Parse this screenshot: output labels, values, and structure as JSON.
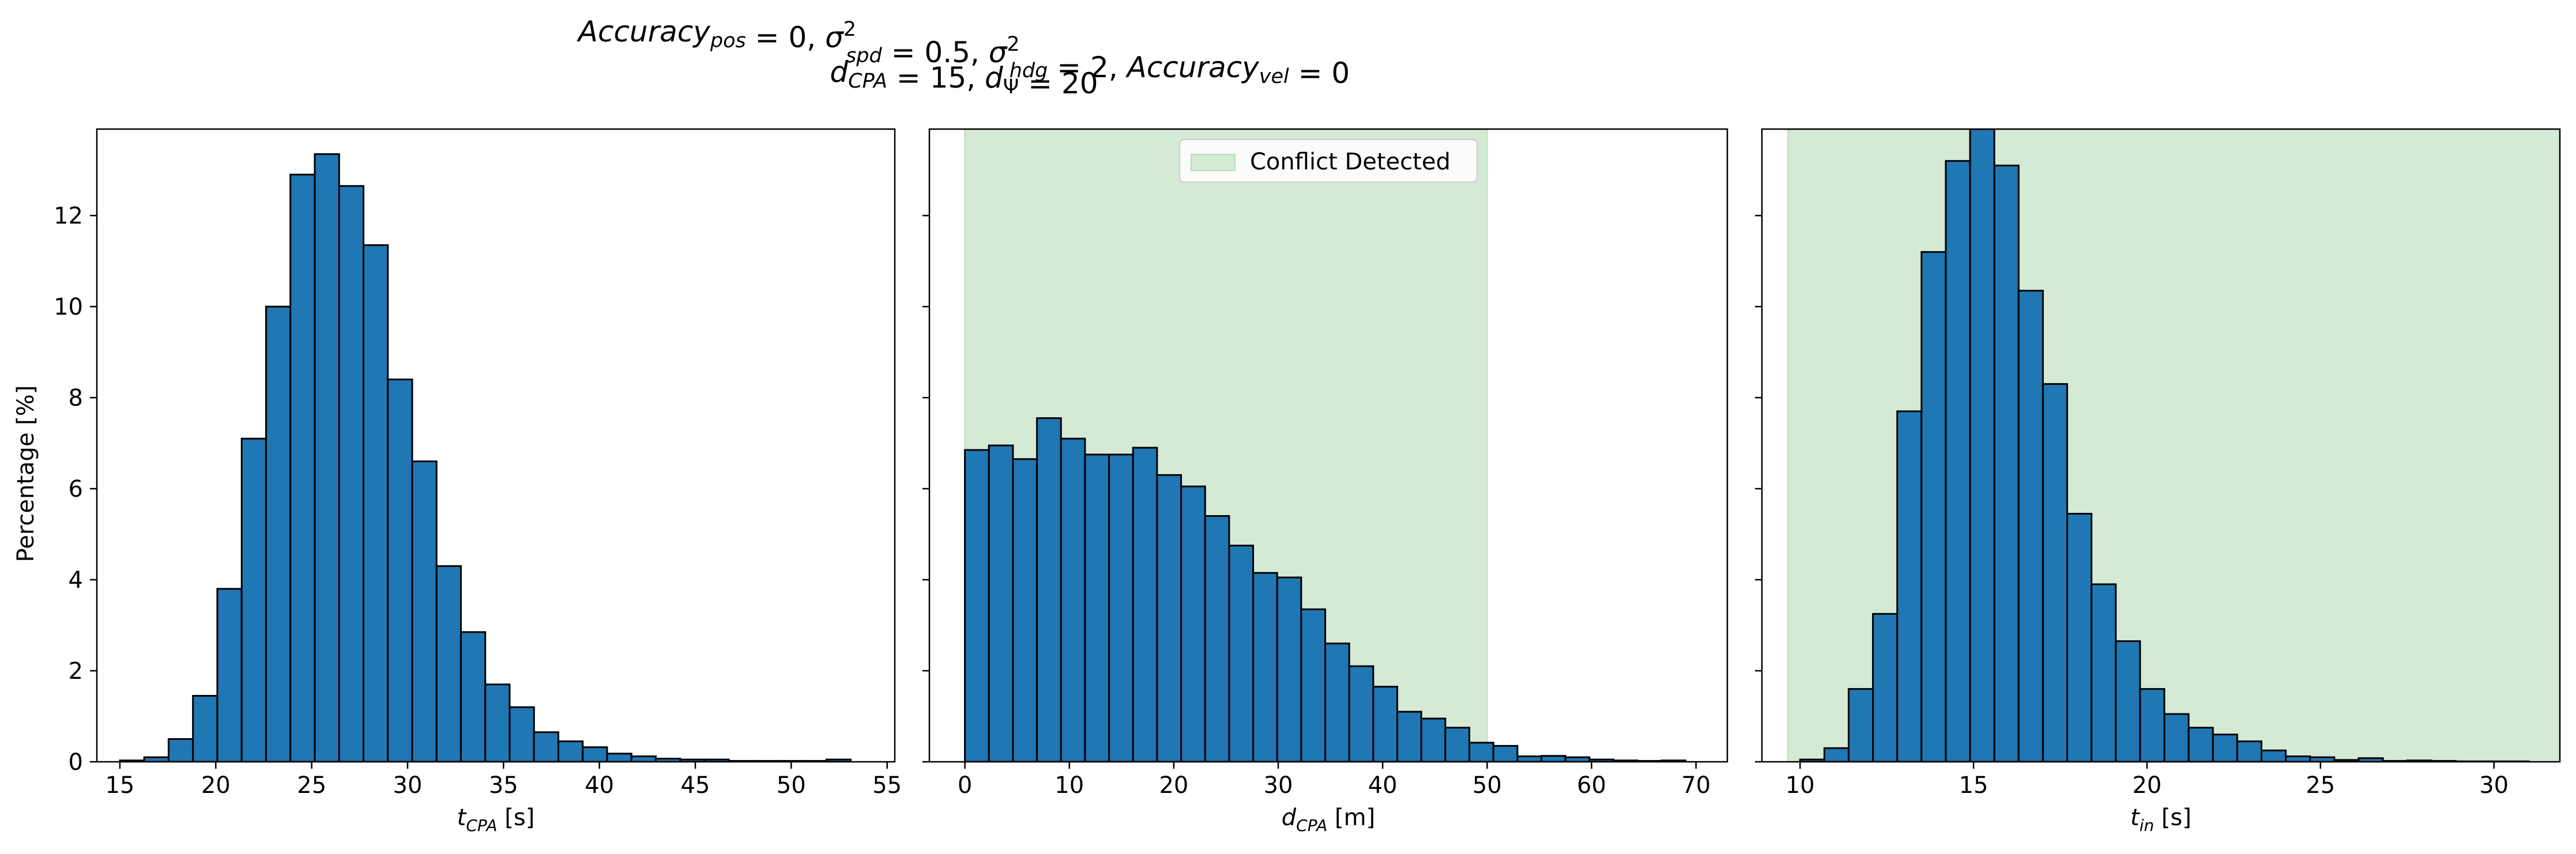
{
  "chart_data": {
    "title_lines": [
      "Accuracy_pos = 0, σ²_spd = 0.5, σ²_hdg = 2, Accuracy_vel = 0",
      "d_CPA = 15, d_Ψ = 20"
    ],
    "shared_ylabel": "Percentage [%]",
    "colors": {
      "bar_fill": "#1f77b4",
      "bar_edge": "#000000",
      "conflict_span": "#d5ead5",
      "conflict_span_edge": "#b9dbb9"
    },
    "subplots": [
      {
        "type": "histogram",
        "xlabel": "t_CPA [s]",
        "xlim": [
          13.8,
          55.4
        ],
        "ylim": [
          0,
          13.9
        ],
        "xticks": [
          15,
          20,
          25,
          30,
          35,
          40,
          45,
          50,
          55
        ],
        "yticks": [
          0,
          2,
          4,
          6,
          8,
          10,
          12
        ],
        "bin_width": 1.27,
        "bin_starts": [
          15.0,
          16.27,
          17.54,
          18.81,
          20.08,
          21.35,
          22.62,
          23.89,
          25.16,
          26.43,
          27.7,
          28.97,
          30.24,
          31.51,
          32.78,
          34.05,
          35.32,
          36.59,
          37.86,
          39.13,
          40.4,
          41.67,
          42.94,
          44.21,
          45.48,
          46.75,
          48.02,
          49.29,
          50.56,
          51.83
        ],
        "values": [
          0.03,
          0.1,
          0.5,
          1.45,
          3.8,
          7.1,
          10.0,
          12.9,
          13.35,
          12.65,
          11.35,
          8.4,
          6.6,
          4.3,
          2.85,
          1.7,
          1.2,
          0.65,
          0.45,
          0.32,
          0.18,
          0.12,
          0.07,
          0.05,
          0.05,
          0.02,
          0.02,
          0.02,
          0.02,
          0.05
        ]
      },
      {
        "type": "histogram",
        "xlabel": "d_CPA [m]",
        "xlim": [
          -3.4,
          73.0
        ],
        "ylim": [
          0,
          13.9
        ],
        "xticks": [
          0,
          10,
          20,
          30,
          40,
          50,
          60,
          70
        ],
        "yticks": [
          0,
          2,
          4,
          6,
          8,
          10,
          12
        ],
        "bin_width": 2.3,
        "bin_starts": [
          0.0,
          2.3,
          4.6,
          6.9,
          9.2,
          11.5,
          13.8,
          16.1,
          18.4,
          20.7,
          23.0,
          25.3,
          27.6,
          29.9,
          32.2,
          34.5,
          36.8,
          39.1,
          41.4,
          43.7,
          46.0,
          48.3,
          50.6,
          52.9,
          55.2,
          57.5,
          59.8,
          62.1,
          64.4,
          66.7
        ],
        "values": [
          6.85,
          6.95,
          6.65,
          7.55,
          7.1,
          6.75,
          6.75,
          6.9,
          6.3,
          6.05,
          5.4,
          4.75,
          4.15,
          4.05,
          3.35,
          2.6,
          2.1,
          1.65,
          1.1,
          0.95,
          0.75,
          0.42,
          0.35,
          0.12,
          0.13,
          0.1,
          0.05,
          0.03,
          0.02,
          0.03
        ],
        "span": {
          "x0": 0,
          "x1": 50,
          "label": "Conflict Detected"
        },
        "legend_position": "upper center"
      },
      {
        "type": "histogram",
        "xlabel": "t_in [s]",
        "xlim": [
          8.9,
          31.9
        ],
        "ylim": [
          0,
          13.9
        ],
        "xticks": [
          10,
          15,
          20,
          25,
          30
        ],
        "yticks": [
          0,
          2,
          4,
          6,
          8,
          10,
          12
        ],
        "bin_width": 0.7,
        "bin_starts": [
          10.0,
          10.7,
          11.4,
          12.1,
          12.8,
          13.5,
          14.2,
          14.9,
          15.6,
          16.3,
          17.0,
          17.7,
          18.4,
          19.1,
          19.8,
          20.5,
          21.2,
          21.9,
          22.6,
          23.3,
          24.0,
          24.7,
          25.4,
          26.1,
          26.8,
          27.5,
          28.2,
          28.9,
          29.6,
          30.3
        ],
        "values": [
          0.05,
          0.3,
          1.6,
          3.25,
          7.7,
          11.2,
          13.2,
          13.9,
          13.1,
          10.35,
          8.3,
          5.45,
          3.9,
          2.65,
          1.6,
          1.05,
          0.75,
          0.6,
          0.45,
          0.25,
          0.12,
          0.1,
          0.04,
          0.08,
          0.02,
          0.03,
          0.02,
          0.01,
          0.01,
          0.01
        ],
        "span": {
          "x0": 9.65,
          "x1": 31.9
        }
      }
    ]
  }
}
